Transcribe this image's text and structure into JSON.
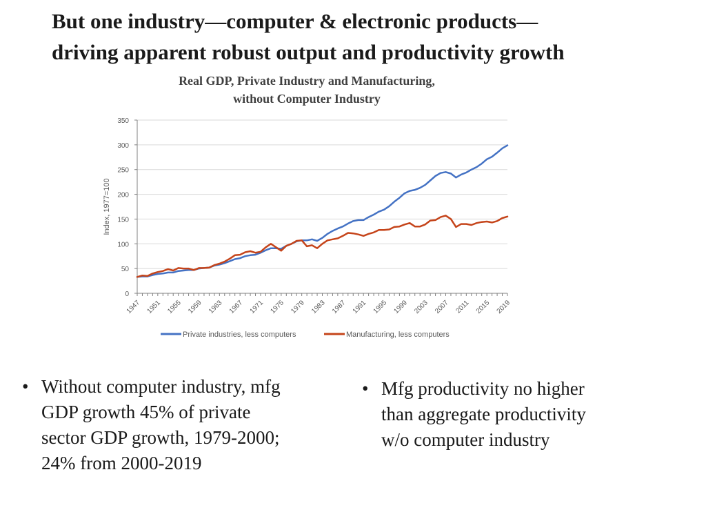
{
  "slide": {
    "title_line1": "But one industry—computer & electronic products—",
    "title_line2": "driving apparent robust output and productivity growth"
  },
  "bullets": [
    {
      "marker": "•",
      "text": "Without computer industry, mfg\nGDP growth 45% of  private\nsector GDP growth, 1979-2000;\n24% from 2000-2019"
    },
    {
      "marker": "•",
      "text": "Mfg productivity no higher\nthan aggregate productivity\nw/o computer industry"
    }
  ],
  "chart_data": {
    "type": "line",
    "title_line1": "Real GDP, Private Industry and Manufacturing,",
    "title_line2": "without Computer Industry",
    "xlabel": "",
    "ylabel": "Index, 1977=100",
    "ylim": [
      0,
      350
    ],
    "yticks": [
      0,
      50,
      100,
      150,
      200,
      250,
      300,
      350
    ],
    "xlim": [
      1947,
      2019
    ],
    "xticks": [
      1947,
      1951,
      1955,
      1959,
      1963,
      1967,
      1971,
      1975,
      1979,
      1983,
      1987,
      1991,
      1995,
      1999,
      2003,
      2007,
      2011,
      2015,
      2019
    ],
    "grid": true,
    "legend_position": "bottom",
    "series": [
      {
        "name": "Private industries, less computers",
        "color": "#4472C4",
        "x": [
          1947,
          1948,
          1949,
          1950,
          1951,
          1952,
          1953,
          1954,
          1955,
          1956,
          1957,
          1958,
          1959,
          1960,
          1961,
          1962,
          1963,
          1964,
          1965,
          1966,
          1967,
          1968,
          1969,
          1970,
          1971,
          1972,
          1973,
          1974,
          1975,
          1976,
          1977,
          1978,
          1979,
          1980,
          1981,
          1982,
          1983,
          1984,
          1985,
          1986,
          1987,
          1988,
          1989,
          1990,
          1991,
          1992,
          1993,
          1994,
          1995,
          1996,
          1997,
          1998,
          1999,
          2000,
          2001,
          2002,
          2003,
          2004,
          2005,
          2006,
          2007,
          2008,
          2009,
          2010,
          2011,
          2012,
          2013,
          2014,
          2015,
          2016,
          2017,
          2018,
          2019
        ],
        "values": [
          33,
          34,
          34,
          37,
          39,
          40,
          42,
          42,
          45,
          46,
          47,
          47,
          50,
          51,
          52,
          56,
          58,
          61,
          65,
          69,
          71,
          75,
          77,
          78,
          82,
          87,
          91,
          91,
          90,
          96,
          100,
          105,
          107,
          107,
          109,
          106,
          112,
          120,
          126,
          131,
          135,
          141,
          146,
          148,
          148,
          154,
          159,
          165,
          169,
          176,
          185,
          193,
          202,
          207,
          209,
          213,
          219,
          228,
          237,
          243,
          245,
          242,
          234,
          240,
          244,
          250,
          255,
          262,
          271,
          276,
          284,
          293,
          299
        ]
      },
      {
        "name": "Manufacturing, less computers",
        "color": "#C5441A",
        "x": [
          1947,
          1948,
          1949,
          1950,
          1951,
          1952,
          1953,
          1954,
          1955,
          1956,
          1957,
          1958,
          1959,
          1960,
          1961,
          1962,
          1963,
          1964,
          1965,
          1966,
          1967,
          1968,
          1969,
          1970,
          1971,
          1972,
          1973,
          1974,
          1975,
          1976,
          1977,
          1978,
          1979,
          1980,
          1981,
          1982,
          1983,
          1984,
          1985,
          1986,
          1987,
          1988,
          1989,
          1990,
          1991,
          1992,
          1993,
          1994,
          1995,
          1996,
          1997,
          1998,
          1999,
          2000,
          2001,
          2002,
          2003,
          2004,
          2005,
          2006,
          2007,
          2008,
          2009,
          2010,
          2011,
          2012,
          2013,
          2014,
          2015,
          2016,
          2017,
          2018,
          2019
        ],
        "values": [
          33,
          36,
          35,
          40,
          43,
          45,
          49,
          46,
          51,
          50,
          50,
          47,
          51,
          51,
          52,
          57,
          60,
          64,
          70,
          77,
          78,
          83,
          85,
          82,
          84,
          93,
          100,
          93,
          86,
          96,
          100,
          106,
          107,
          95,
          97,
          91,
          100,
          107,
          109,
          111,
          116,
          122,
          121,
          119,
          116,
          120,
          123,
          128,
          128,
          129,
          134,
          135,
          139,
          142,
          135,
          135,
          139,
          147,
          148,
          154,
          157,
          150,
          134,
          140,
          140,
          138,
          142,
          144,
          145,
          143,
          146,
          152,
          155
        ]
      }
    ]
  }
}
